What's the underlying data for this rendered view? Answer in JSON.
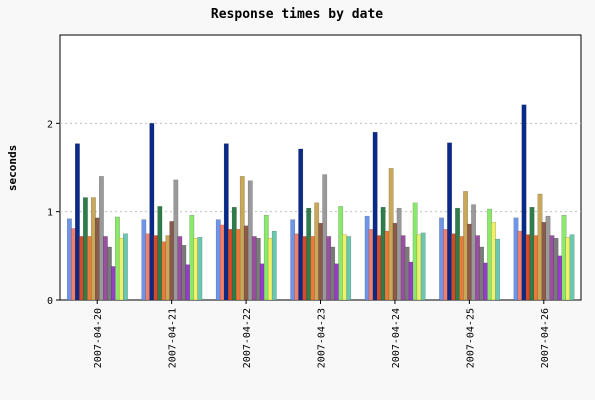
{
  "chart_data": {
    "type": "bar",
    "title": "Response times by date",
    "xlabel": "",
    "ylabel": "seconds",
    "ylim": [
      0,
      3
    ],
    "yticks": [
      0,
      1,
      2
    ],
    "grid": true,
    "legend": "none",
    "categories": [
      "2007-04-20",
      "2007-04-21",
      "2007-04-22",
      "2007-04-23",
      "2007-04-24",
      "2007-04-25",
      "2007-04-26"
    ],
    "series": [
      {
        "color": "#6f95ea",
        "values": [
          0.92,
          0.91,
          0.91,
          0.91,
          0.95,
          0.93,
          0.93
        ]
      },
      {
        "color": "#f07f6b",
        "values": [
          0.81,
          0.75,
          0.85,
          0.75,
          0.8,
          0.8,
          0.78
        ]
      },
      {
        "color": "#0a2a8a",
        "values": [
          1.77,
          2.0,
          1.77,
          1.71,
          1.9,
          1.78,
          2.21
        ]
      },
      {
        "color": "#d44a2a",
        "values": [
          0.72,
          0.73,
          0.8,
          0.72,
          0.73,
          0.75,
          0.74
        ]
      },
      {
        "color": "#2e7d4a",
        "values": [
          1.16,
          1.06,
          1.05,
          1.04,
          1.05,
          1.04,
          1.05
        ]
      },
      {
        "color": "#e87a3a",
        "values": [
          0.72,
          0.66,
          0.8,
          0.72,
          0.78,
          0.72,
          0.73
        ]
      },
      {
        "color": "#c9a85a",
        "values": [
          1.16,
          0.73,
          1.4,
          1.1,
          1.49,
          1.23,
          1.2
        ]
      },
      {
        "color": "#8a5a4a",
        "values": [
          0.93,
          0.89,
          0.84,
          0.87,
          0.87,
          0.86,
          0.88
        ]
      },
      {
        "color": "#9a9a9a",
        "values": [
          1.4,
          1.36,
          1.35,
          1.42,
          1.04,
          1.08,
          0.95
        ]
      },
      {
        "color": "#9a50a0",
        "values": [
          0.72,
          0.72,
          0.72,
          0.72,
          0.73,
          0.73,
          0.73
        ]
      },
      {
        "color": "#7a7a7a",
        "values": [
          0.6,
          0.62,
          0.7,
          0.6,
          0.6,
          0.6,
          0.7
        ]
      },
      {
        "color": "#9a3acc",
        "values": [
          0.38,
          0.4,
          0.41,
          0.41,
          0.43,
          0.42,
          0.5
        ]
      },
      {
        "color": "#8ae86a",
        "values": [
          0.94,
          0.96,
          0.96,
          1.06,
          1.1,
          1.03,
          0.96
        ]
      },
      {
        "color": "#f0f06a",
        "values": [
          0.7,
          0.7,
          0.7,
          0.74,
          0.74,
          0.88,
          0.71
        ]
      },
      {
        "color": "#6ac8b0",
        "values": [
          0.75,
          0.71,
          0.78,
          0.72,
          0.76,
          0.69,
          0.74
        ]
      }
    ]
  }
}
